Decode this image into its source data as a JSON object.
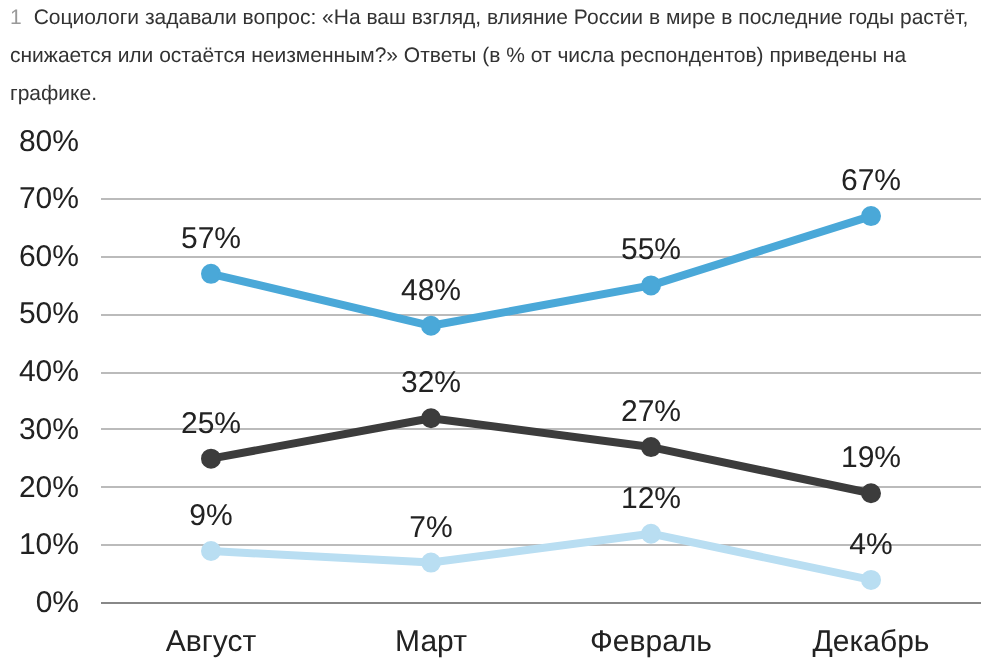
{
  "chart_data": {
    "type": "line",
    "title": "Социологи задавали вопрос: «На ваш взгляд, влияние России в мире в последние годы растёт, снижается или остаётся неизменным?» Ответы (в % от числа респондентов) приведены на графике.",
    "annotations": [
      "1"
    ],
    "categories": [
      "Август",
      "Март",
      "Февраль",
      "Декабрь"
    ],
    "series": [
      {
        "color": "#4aa8d8",
        "values": [
          57,
          48,
          55,
          67
        ],
        "value_labels": [
          "57%",
          "48%",
          "55%",
          "67%"
        ]
      },
      {
        "color": "#3c3c3c",
        "values": [
          25,
          32,
          27,
          19
        ],
        "value_labels": [
          "25%",
          "32%",
          "27%",
          "19%"
        ]
      },
      {
        "color": "#b9def2",
        "values": [
          9,
          7,
          12,
          4
        ],
        "value_labels": [
          "9%",
          "7%",
          "12%",
          "4%"
        ]
      }
    ],
    "ylim": [
      0,
      80
    ],
    "yticks": [
      {
        "value": 0,
        "label": "0%"
      },
      {
        "value": 10,
        "label": "10%"
      },
      {
        "value": 20,
        "label": "20%"
      },
      {
        "value": 30,
        "label": "30%"
      },
      {
        "value": 40,
        "label": "40%"
      },
      {
        "value": 50,
        "label": "50%"
      },
      {
        "value": 60,
        "label": "60%"
      },
      {
        "value": 70,
        "label": "70%"
      },
      {
        "value": 80,
        "label": "80%"
      }
    ],
    "grid": "y",
    "marker": "circle",
    "line_style": "solid"
  }
}
